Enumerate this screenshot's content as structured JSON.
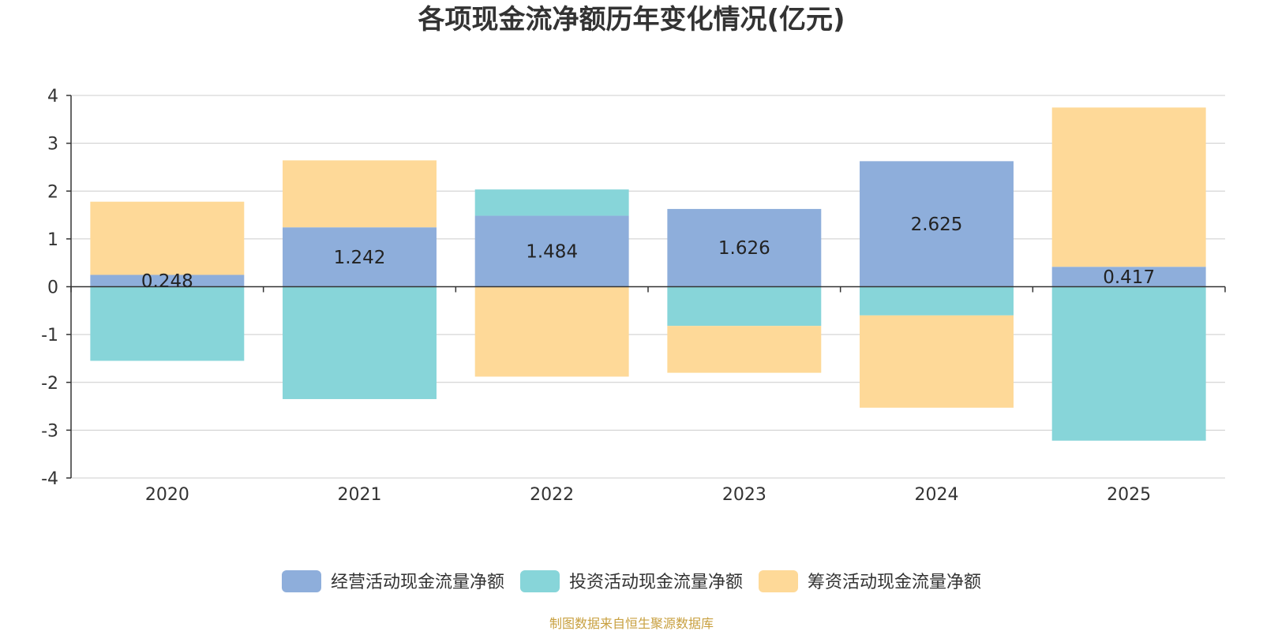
{
  "chart_data": {
    "type": "bar",
    "stacked": true,
    "title": "各项现金流净额历年变化情况(亿元)",
    "categories": [
      "2020",
      "2021",
      "2022",
      "2023",
      "2024",
      "2025"
    ],
    "ylim": [
      -4,
      4
    ],
    "yticks": [
      "4",
      "3",
      "2",
      "1",
      "0",
      "-1",
      "-2",
      "-3",
      "-4"
    ],
    "grid": true,
    "legend_position": "bottom",
    "series": [
      {
        "name": "经营活动现金流量净额",
        "color": "#8eaedb",
        "values": [
          0.248,
          1.242,
          1.484,
          1.626,
          2.625,
          0.417
        ],
        "labels": [
          "0.248",
          "1.242",
          "1.484",
          "1.626",
          "2.625",
          "0.417"
        ]
      },
      {
        "name": "投资活动现金流量净额",
        "color": "#87d5d9",
        "values": [
          -1.55,
          -2.35,
          0.55,
          -0.82,
          -0.6,
          -3.22
        ]
      },
      {
        "name": "筹资活动现金流量净额",
        "color": "#fed998",
        "values": [
          1.53,
          1.4,
          -1.88,
          -0.98,
          -1.93,
          3.33
        ]
      }
    ]
  },
  "footer": "制图数据来自恒生聚源数据库"
}
